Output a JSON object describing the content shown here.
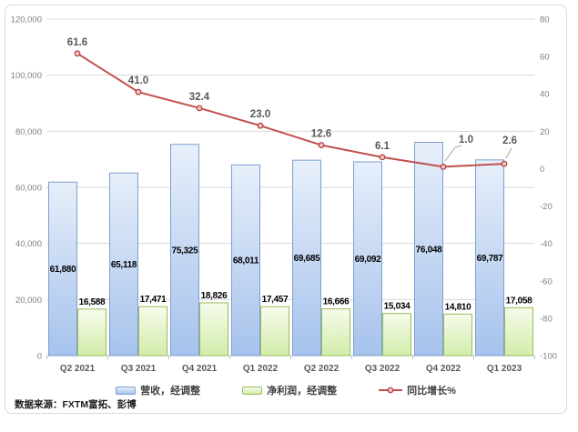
{
  "chart_data": {
    "type": "combo-bar-line",
    "categories": [
      "Q2 2021",
      "Q3 2021",
      "Q4 2021",
      "Q1 2022",
      "Q2 2022",
      "Q3 2022",
      "Q4 2022",
      "Q1 2023"
    ],
    "series": [
      {
        "key": "revenue",
        "name": "营收，经调整",
        "type": "bar",
        "axis": "left",
        "values": [
          61880,
          65118,
          75325,
          68011,
          69685,
          69092,
          76048,
          69787
        ],
        "labels": [
          "61,880",
          "65,118",
          "75,325",
          "68,011",
          "69,685",
          "69,092",
          "76,048",
          "69,787"
        ],
        "fill_top": "#e7effa",
        "fill_bottom": "#a6c2ec",
        "border": "#7d9fd0"
      },
      {
        "key": "net-profit",
        "name": "净利润，经调整",
        "type": "bar",
        "axis": "left",
        "values": [
          16588,
          17471,
          18826,
          17457,
          16666,
          15034,
          14810,
          17058
        ],
        "labels": [
          "16,588",
          "17,471",
          "18,826",
          "17,457",
          "16,666",
          "15,034",
          "14,810",
          "17,058"
        ],
        "fill_top": "#f6fbec",
        "fill_bottom": "#d2edaa",
        "border": "#9bbb59"
      },
      {
        "key": "yoy-growth",
        "name": "同比增长%",
        "type": "line",
        "axis": "right",
        "values": [
          61.6,
          41.0,
          32.4,
          23.0,
          12.6,
          6.1,
          1.0,
          2.6
        ],
        "labels": [
          "61.6",
          "41.0",
          "32.4",
          "23.0",
          "12.6",
          "6.1",
          "1.0",
          "2.6"
        ],
        "color": "#c0504d",
        "marker_fill": "#f0c4c2",
        "marker_border": "#b03a37"
      }
    ],
    "left_axis": {
      "min": 0,
      "max": 120000,
      "step": 20000,
      "tick_labels": [
        "0",
        "20,000",
        "40,000",
        "60,000",
        "80,000",
        "100,000",
        "120,000"
      ]
    },
    "right_axis": {
      "min": -100,
      "max": 80,
      "step": 20,
      "tick_labels": [
        "-100",
        "-80",
        "-60",
        "-40",
        "-20",
        "0",
        "20",
        "40",
        "60",
        "80"
      ]
    },
    "grid": true,
    "legend_position": "bottom",
    "source_note": "数据来源：FXTM富拓、彭博"
  }
}
